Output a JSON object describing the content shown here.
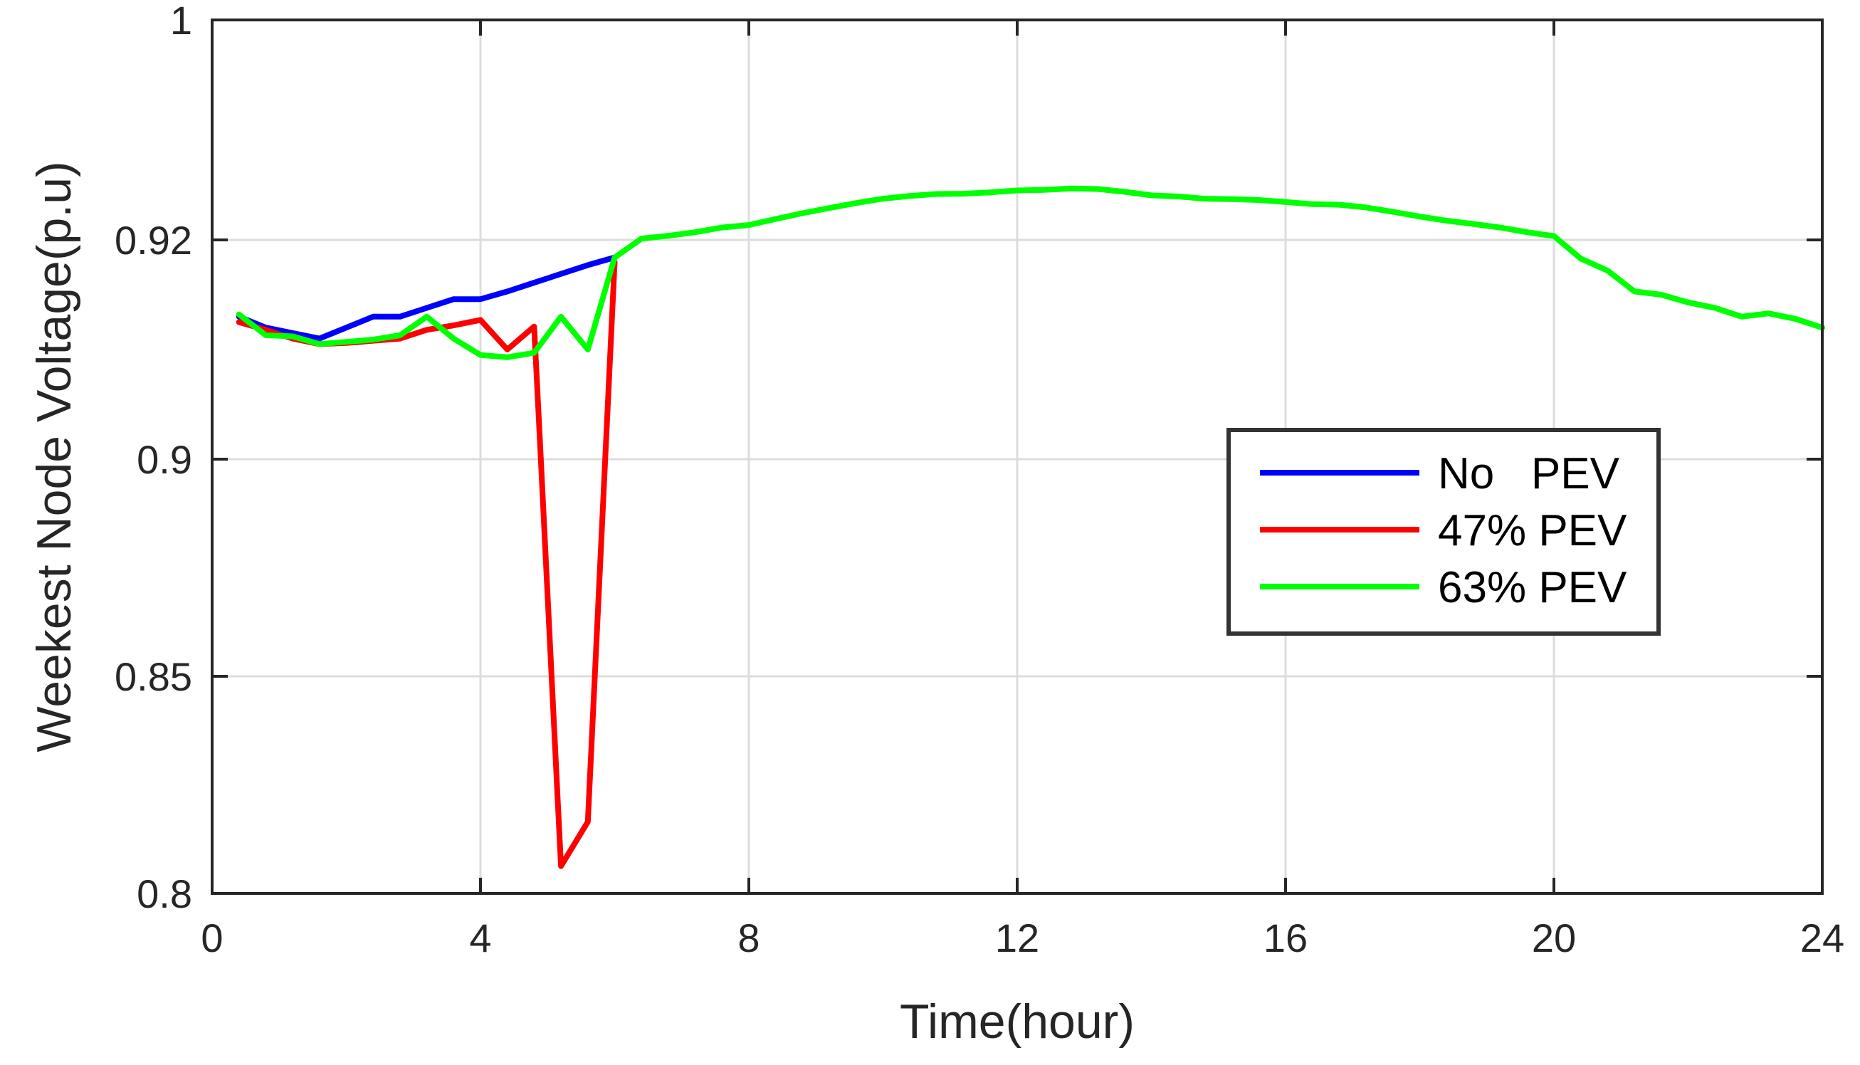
{
  "chart_data": {
    "type": "line",
    "title": "",
    "xlabel": "Time(hour)",
    "ylabel": "Weekest Node Voltage(p.u)",
    "xlim": [
      0,
      24
    ],
    "ylim": [
      0.8,
      1
    ],
    "xticks": [
      0,
      4,
      8,
      12,
      16,
      20,
      24
    ],
    "xtick_labels": [
      "0",
      "4",
      "8",
      "12",
      "16",
      "20",
      "24"
    ],
    "yticks": [
      0.8,
      0.85,
      0.9,
      0.92,
      1
    ],
    "ytick_labels": [
      "0.8",
      "0.85",
      "0.9",
      "0.92",
      "1"
    ],
    "grid": true,
    "legend_position": "center-right",
    "colors": {
      "axes": "#262626",
      "grid": "#dcdcdc",
      "legend_border": "#333333"
    },
    "series": [
      {
        "name": "No   PEV",
        "color": "#0000ff",
        "x": [
          0.4,
          0.8,
          1.2,
          1.6,
          2.0,
          2.4,
          2.8,
          3.2,
          3.6,
          4.0,
          4.4,
          4.8,
          5.2,
          5.6,
          6.0
        ],
        "y": [
          0.913,
          0.912,
          0.9115,
          0.911,
          0.912,
          0.913,
          0.913,
          0.9138,
          0.9146,
          0.9146,
          0.9153,
          0.9161,
          0.9169,
          0.9177,
          0.9184
        ]
      },
      {
        "name": "47% PEV",
        "color": "#ff0000",
        "x": [
          0.4,
          0.8,
          1.2,
          1.6,
          2.0,
          2.4,
          2.8,
          3.2,
          3.6,
          4.0,
          4.4,
          4.8,
          4.9,
          5.2,
          5.6,
          6.0
        ],
        "y": [
          0.9125,
          0.9118,
          0.911,
          0.9105,
          0.9106,
          0.9108,
          0.911,
          0.9118,
          0.9122,
          0.9127,
          0.91,
          0.9121,
          0.9,
          0.8063,
          0.8165,
          0.918
        ]
      },
      {
        "name": "63% PEV",
        "color": "#00ff00",
        "x": [
          0.4,
          0.8,
          1.2,
          1.6,
          2.0,
          2.4,
          2.8,
          3.2,
          3.6,
          4.0,
          4.4,
          4.8,
          5.2,
          5.6,
          6.0,
          6.4,
          6.8,
          7.2,
          7.6,
          8.0,
          8.4,
          8.8,
          9.2,
          9.6,
          10.0,
          10.4,
          10.8,
          11.2,
          11.6,
          12.0,
          12.4,
          12.8,
          13.2,
          13.6,
          14.0,
          14.4,
          14.8,
          15.2,
          15.6,
          16.0,
          16.4,
          16.8,
          17.2,
          17.6,
          18.0,
          18.4,
          18.8,
          19.2,
          19.6,
          20.0,
          20.4,
          20.8,
          21.2,
          21.6,
          22.0,
          22.4,
          22.8,
          23.2,
          23.6,
          24.0
        ],
        "y": [
          0.9132,
          0.9113,
          0.9112,
          0.9105,
          0.9107,
          0.9109,
          0.9113,
          0.913,
          0.911,
          0.9095,
          0.9093,
          0.9097,
          0.913,
          0.91,
          0.9184,
          0.9205,
          0.9215,
          0.9228,
          0.9245,
          0.9254,
          0.9276,
          0.9297,
          0.9316,
          0.9334,
          0.935,
          0.936,
          0.9367,
          0.9368,
          0.9373,
          0.938,
          0.9382,
          0.9387,
          0.9385,
          0.9375,
          0.9362,
          0.9358,
          0.935,
          0.9348,
          0.9345,
          0.9338,
          0.933,
          0.9328,
          0.9318,
          0.9302,
          0.9285,
          0.927,
          0.9258,
          0.9245,
          0.9228,
          0.9214,
          0.9183,
          0.9172,
          0.9153,
          0.915,
          0.9143,
          0.9138,
          0.913,
          0.9133,
          0.9128,
          0.912
        ]
      }
    ]
  }
}
